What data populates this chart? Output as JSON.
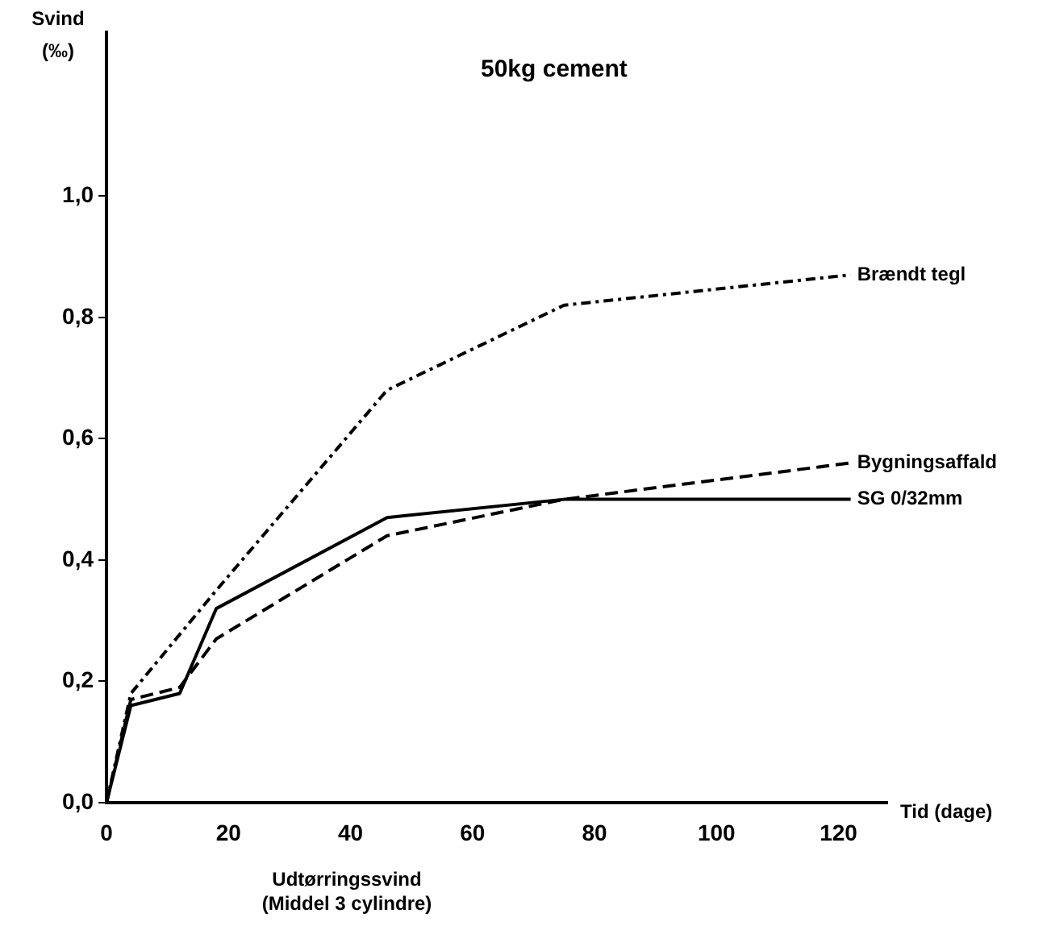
{
  "chart_data": {
    "type": "line",
    "title": "50kg cement",
    "ylabel": "Svind\n(‰)",
    "xlabel": "Tid (dage)",
    "annotations": [
      "Udtørringssvind\n(Middel 3 cylindre)"
    ],
    "xlim": [
      0,
      128
    ],
    "xticks": [
      0,
      20,
      40,
      60,
      80,
      100,
      120
    ],
    "ylim": [
      0,
      1.27
    ],
    "yticks": [
      {
        "value": 0,
        "label": "0,0"
      },
      {
        "value": 0.2,
        "label": "0,2"
      },
      {
        "value": 0.4,
        "label": "0,4"
      },
      {
        "value": 0.6,
        "label": "0,6"
      },
      {
        "value": 0.8,
        "label": "0,8"
      },
      {
        "value": 1.0,
        "label": "1,0"
      }
    ],
    "grid": false,
    "legend": false,
    "marker": "none",
    "series": [
      {
        "name": "Brændt tegl",
        "color": "#000000",
        "line_style": "dashdot",
        "x": [
          0,
          4,
          18,
          46,
          75,
          122
        ],
        "values": [
          0,
          0.18,
          0.35,
          0.68,
          0.82,
          0.87
        ]
      },
      {
        "name": "Bygningsaffald",
        "color": "#000000",
        "line_style": "dashed",
        "x": [
          0,
          4,
          12,
          18,
          46,
          75,
          122
        ],
        "values": [
          0,
          0.17,
          0.19,
          0.27,
          0.44,
          0.5,
          0.56
        ]
      },
      {
        "name": "SG 0/32mm",
        "color": "#000000",
        "line_style": "solid",
        "x": [
          0,
          4,
          12,
          18,
          46,
          75,
          122
        ],
        "values": [
          0,
          0.16,
          0.18,
          0.32,
          0.47,
          0.5,
          0.5
        ]
      }
    ]
  }
}
